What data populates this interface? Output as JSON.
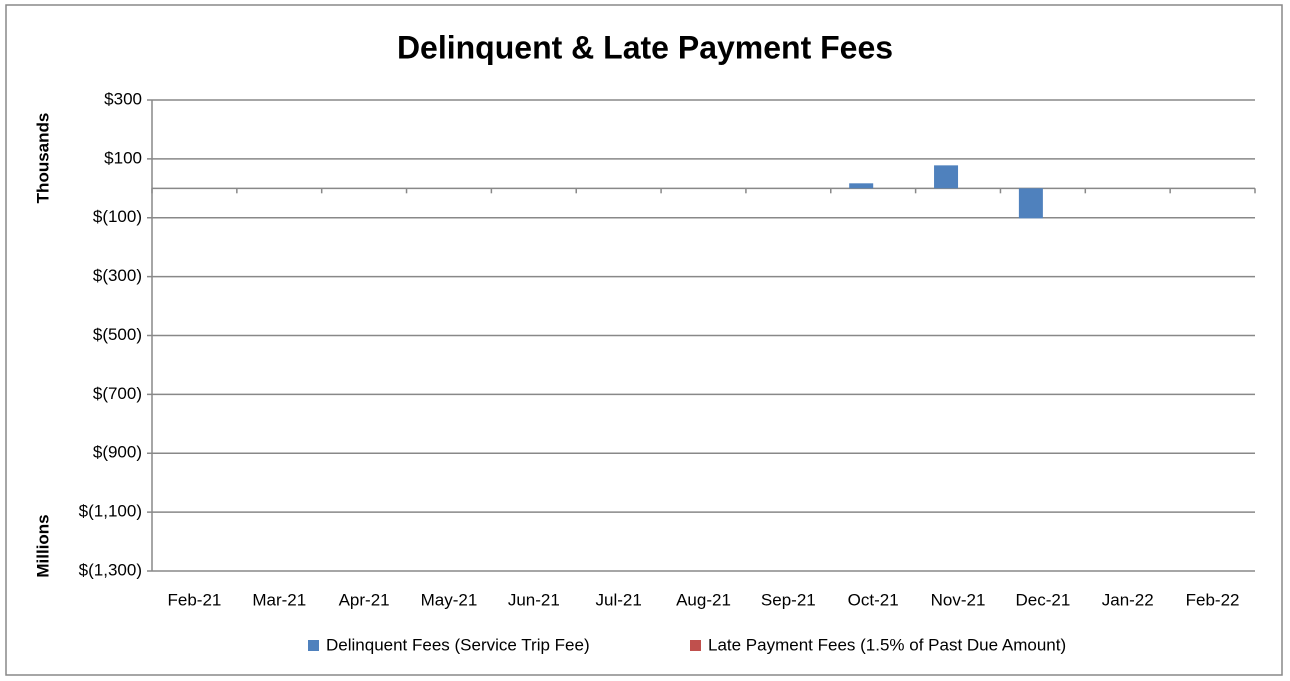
{
  "chart_data": {
    "type": "bar",
    "title": "Delinquent & Late Payment Fees",
    "y_axis_labels": [
      "Thousands",
      "Millions"
    ],
    "categories": [
      "Feb-21",
      "Mar-21",
      "Apr-21",
      "May-21",
      "Jun-21",
      "Jul-21",
      "Aug-21",
      "Sep-21",
      "Oct-21",
      "Nov-21",
      "Dec-21",
      "Jan-22",
      "Feb-22"
    ],
    "series": [
      {
        "name": "Delinquent Fees (Service Trip Fee)",
        "color": "#4f81bd",
        "values": [
          0,
          0,
          0,
          0,
          0,
          0,
          0,
          0,
          17,
          78,
          -102,
          0,
          0
        ]
      },
      {
        "name": "Late Payment Fees (1.5% of Past Due Amount)",
        "color": "#c0504d",
        "values": [
          0,
          0,
          0,
          0,
          0,
          0,
          0,
          0,
          0,
          0,
          0,
          0,
          0
        ]
      }
    ],
    "ylim": [
      -1300,
      300
    ],
    "yticks": [
      {
        "value": 300,
        "label": "$300"
      },
      {
        "value": 100,
        "label": "$100"
      },
      {
        "value": -100,
        "label": "$(100)"
      },
      {
        "value": -300,
        "label": "$(300)"
      },
      {
        "value": -500,
        "label": "$(500)"
      },
      {
        "value": -700,
        "label": "$(700)"
      },
      {
        "value": -900,
        "label": "$(900)"
      },
      {
        "value": -1100,
        "label": "$(1,100)"
      },
      {
        "value": -1300,
        "label": "$(1,300)"
      }
    ],
    "grid": true,
    "legend": "bottom"
  }
}
